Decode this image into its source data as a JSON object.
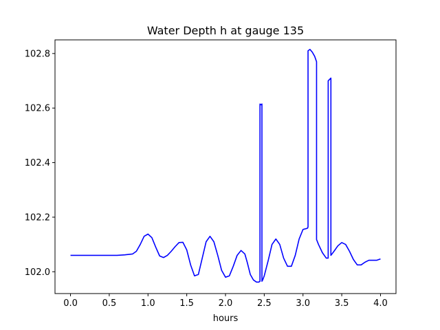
{
  "chart_data": {
    "type": "line",
    "title": "Water Depth h at gauge 135",
    "xlabel": "hours",
    "ylabel": "",
    "xlim": [
      -0.2,
      4.2
    ],
    "ylim": [
      101.92,
      102.85
    ],
    "xticks": [
      "0.0",
      "0.5",
      "1.0",
      "1.5",
      "2.0",
      "2.5",
      "3.0",
      "3.5",
      "4.0"
    ],
    "xtick_values": [
      0.0,
      0.5,
      1.0,
      1.5,
      2.0,
      2.5,
      3.0,
      3.5,
      4.0
    ],
    "yticks": [
      "102.0",
      "102.2",
      "102.4",
      "102.6",
      "102.8"
    ],
    "ytick_values": [
      102.0,
      102.2,
      102.4,
      102.6,
      102.8
    ],
    "grid": false,
    "line_color": "#0000ff",
    "series": [
      {
        "x": [
          0.0,
          0.2,
          0.4,
          0.6,
          0.7,
          0.8,
          0.85,
          0.9,
          0.95,
          1.0,
          1.05,
          1.1,
          1.15,
          1.2,
          1.25,
          1.3,
          1.35,
          1.4,
          1.45,
          1.5,
          1.55,
          1.6,
          1.65,
          1.7,
          1.75,
          1.8,
          1.85,
          1.9,
          1.95,
          2.0,
          2.05,
          2.1,
          2.15,
          2.2,
          2.25,
          2.28,
          2.32,
          2.36,
          2.4,
          2.43,
          2.445,
          2.445,
          2.46,
          2.47,
          2.47,
          2.48,
          2.5,
          2.55,
          2.6,
          2.65,
          2.7,
          2.75,
          2.8,
          2.85,
          2.9,
          2.95,
          3.0,
          3.04,
          3.06,
          3.065,
          3.065,
          3.09,
          3.12,
          3.15,
          3.175,
          3.175,
          3.2,
          3.25,
          3.3,
          3.325,
          3.325,
          3.36,
          3.36,
          3.4,
          3.45,
          3.5,
          3.55,
          3.6,
          3.65,
          3.7,
          3.75,
          3.8,
          3.85,
          3.9,
          3.95,
          4.0
        ],
        "y": [
          102.06,
          102.06,
          102.06,
          102.06,
          102.062,
          102.065,
          102.075,
          102.1,
          102.13,
          102.138,
          102.125,
          102.09,
          102.058,
          102.052,
          102.06,
          102.075,
          102.092,
          102.107,
          102.108,
          102.08,
          102.025,
          101.985,
          101.99,
          102.05,
          102.11,
          102.13,
          102.11,
          102.06,
          102.005,
          101.98,
          101.985,
          102.02,
          102.06,
          102.078,
          102.065,
          102.035,
          101.99,
          101.97,
          101.962,
          101.962,
          101.965,
          102.615,
          102.612,
          102.615,
          101.965,
          101.97,
          101.985,
          102.04,
          102.1,
          102.12,
          102.1,
          102.05,
          102.02,
          102.02,
          102.06,
          102.12,
          102.155,
          102.158,
          102.16,
          102.165,
          102.81,
          102.815,
          102.805,
          102.79,
          102.77,
          102.118,
          102.1,
          102.07,
          102.05,
          102.05,
          102.7,
          102.71,
          102.06,
          102.075,
          102.095,
          102.107,
          102.1,
          102.075,
          102.045,
          102.025,
          102.025,
          102.035,
          102.042,
          102.042,
          102.042,
          102.047
        ]
      }
    ]
  }
}
